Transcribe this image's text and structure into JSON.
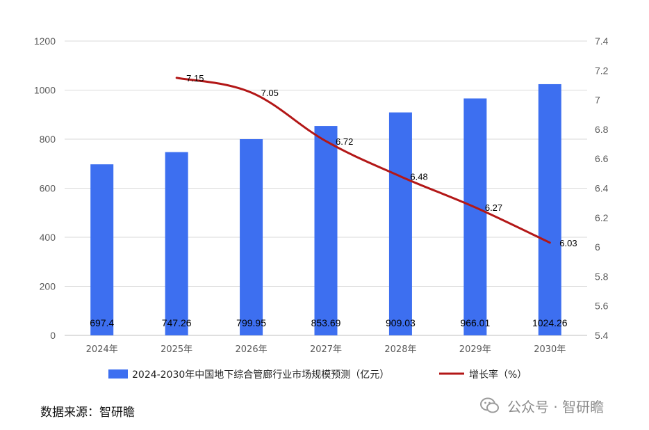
{
  "chart_data": {
    "type": "bar",
    "categories": [
      "2024年",
      "2025年",
      "2026年",
      "2027年",
      "2028年",
      "2029年",
      "2030年"
    ],
    "series": [
      {
        "name": "2024-2030年中国地下综合管廊行业市场规模预测（亿元）",
        "type": "bar",
        "axis": "left",
        "color": "#3d6ff0",
        "values": [
          697.4,
          747.26,
          799.95,
          853.69,
          909.03,
          966.01,
          1024.26
        ],
        "labels": [
          "697.4",
          "747.26",
          "799.95",
          "853.69",
          "909.03",
          "966.01",
          "1024.26"
        ]
      },
      {
        "name": "增长率（%）",
        "type": "line",
        "axis": "right",
        "color": "#b31717",
        "values": [
          null,
          7.15,
          7.05,
          6.72,
          6.48,
          6.27,
          6.03
        ],
        "labels": [
          "",
          "7.15",
          "7.05",
          "6.72",
          "6.48",
          "6.27",
          "6.03"
        ]
      }
    ],
    "y_left": {
      "min": 0,
      "max": 1200,
      "step": 200,
      "ticks": [
        "0",
        "200",
        "400",
        "600",
        "800",
        "1000",
        "1200"
      ]
    },
    "y_right": {
      "min": 5.4,
      "max": 7.4,
      "step": 0.2,
      "ticks": [
        "5.4",
        "5.6",
        "5.8",
        "6",
        "6.2",
        "6.4",
        "6.6",
        "6.8",
        "7",
        "7.2",
        "7.4"
      ]
    },
    "grid": true,
    "legend_position": "bottom"
  },
  "source": "数据来源：智研瞻",
  "watermark": "公众号 · 智研瞻"
}
